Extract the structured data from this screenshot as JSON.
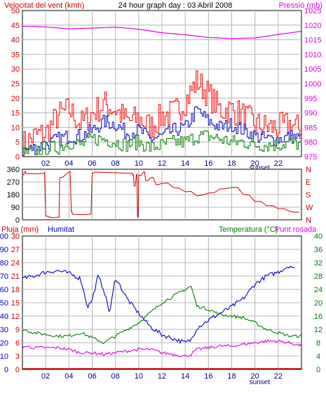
{
  "chart_data": [
    {
      "type": "line",
      "title": "24 hour graph day : 03 Abril 2008",
      "left_axis_label": "Velocitat del vent (kmh)",
      "right_axis_label": "Pressió (mb)",
      "left_ylim": [
        0,
        50
      ],
      "left_ticks": [
        "0",
        "5",
        "10",
        "15",
        "20",
        "25",
        "30",
        "35",
        "40",
        "45",
        "50"
      ],
      "right_ylim": [
        975,
        1025
      ],
      "right_ticks": [
        "975",
        "980",
        "985",
        "990",
        "995",
        "1000",
        "1005",
        "1010",
        "1015",
        "1020",
        "1025"
      ],
      "x_range": [
        0,
        24
      ],
      "x_ticks": [
        "02",
        "04",
        "06",
        "08",
        "10",
        "12",
        "14",
        "16",
        "18",
        "20",
        "22"
      ],
      "x_marker": {
        "label": "sunset",
        "x": 20.4
      },
      "grid": true,
      "colors": {
        "gust": "#ff0000",
        "avg": "#0000c8",
        "dir": "#008000",
        "pressure": "#e000e0"
      },
      "series": [
        {
          "key": "pressure",
          "axis": "right",
          "x": [
            0,
            2,
            4,
            6,
            8,
            10,
            12,
            14,
            16,
            18,
            20,
            22,
            24
          ],
          "values": [
            1019.6,
            1019.4,
            1018.7,
            1019.0,
            1019.3,
            1018.6,
            1017.4,
            1016.7,
            1015.8,
            1015.4,
            1015.6,
            1016.8,
            1017.9
          ]
        },
        {
          "key": "gust",
          "axis": "left",
          "x": [
            0,
            1,
            2,
            3,
            4,
            5,
            6,
            7,
            8,
            9,
            10,
            11,
            12,
            13,
            14,
            15,
            16,
            17,
            18,
            19,
            20,
            21,
            22,
            23,
            24
          ],
          "values": [
            4,
            7,
            8,
            14,
            16,
            11,
            15,
            18,
            16,
            12,
            13,
            10,
            14,
            15,
            19,
            26,
            21,
            16,
            16,
            14,
            11,
            10,
            10,
            11,
            9
          ]
        },
        {
          "key": "avg",
          "axis": "left",
          "x": [
            0,
            1,
            2,
            3,
            4,
            5,
            6,
            7,
            8,
            9,
            10,
            11,
            12,
            13,
            14,
            15,
            16,
            17,
            18,
            19,
            20,
            21,
            22,
            23,
            24
          ],
          "values": [
            2,
            3,
            4,
            6,
            7,
            7,
            9,
            12,
            11,
            8,
            9,
            6,
            7,
            9,
            10,
            16,
            12,
            10,
            11,
            9,
            7,
            6,
            6,
            7,
            6
          ]
        },
        {
          "key": "dir",
          "axis": "left",
          "x": [
            0,
            1,
            2,
            3,
            4,
            5,
            6,
            7,
            8,
            9,
            10,
            11,
            12,
            13,
            14,
            15,
            16,
            17,
            18,
            19,
            20,
            21,
            22,
            23,
            24
          ],
          "values": [
            1,
            2,
            3,
            3,
            5,
            4,
            6,
            6,
            5,
            4,
            5,
            3,
            4,
            5,
            5,
            7,
            7,
            6,
            5,
            5,
            4,
            4,
            4,
            5,
            4
          ]
        }
      ]
    },
    {
      "type": "line",
      "left_ylim": [
        0,
        360
      ],
      "left_ticks": [
        "0",
        "90",
        "180",
        "270",
        "360"
      ],
      "right_ticks": [
        "N",
        "E",
        "S",
        "W",
        "N"
      ],
      "x_range": [
        0,
        24
      ],
      "color": "#cc0000",
      "series": [
        {
          "key": "wind_direction",
          "x": [
            0,
            0.2,
            0.3,
            1.8,
            2.0,
            2.3,
            3.1,
            3.2,
            3.8,
            4.0,
            4.2,
            4.3,
            5.8,
            6.0,
            6.2,
            9.3,
            9.5,
            9.6,
            9.8,
            9.9,
            10.0,
            10.4,
            10.6,
            11.0,
            11.5,
            12.0,
            13.0,
            14.0,
            15.0,
            16.0,
            17.0,
            18.0,
            19.0,
            20.0,
            21.0,
            22.0,
            23.0,
            23.8
          ],
          "values": [
            320,
            340,
            330,
            330,
            30,
            20,
            20,
            300,
            330,
            340,
            60,
            40,
            40,
            330,
            340,
            330,
            320,
            240,
            320,
            20,
            320,
            340,
            280,
            300,
            250,
            260,
            230,
            200,
            170,
            190,
            220,
            230,
            180,
            130,
            100,
            80,
            60,
            55
          ]
        }
      ]
    },
    {
      "type": "line",
      "labels": [
        "Pluja (mm)",
        "Humitat",
        "Temperatura (°C)",
        "Punt rosada"
      ],
      "left_ticks_humidity": [
        "0",
        "10",
        "20",
        "30",
        "40",
        "50",
        "60",
        "70",
        "80",
        "90",
        "100"
      ],
      "left_ticks_rain": [
        "0",
        "3",
        "6",
        "9",
        "12",
        "15",
        "18",
        "21",
        "24",
        "27",
        "30"
      ],
      "right_ticks": [
        "0",
        "4",
        "8",
        "12",
        "16",
        "20",
        "24",
        "28",
        "32",
        "36",
        "40"
      ],
      "humidity_ylim": [
        0,
        100
      ],
      "temperature_ylim": [
        0,
        40
      ],
      "x_range": [
        0,
        24
      ],
      "x_ticks": [
        "02",
        "04",
        "06",
        "08",
        "10",
        "12",
        "14",
        "16",
        "18",
        "20",
        "22"
      ],
      "x_marker": {
        "label": "sunset",
        "x": 20.4
      },
      "colors": {
        "rain": "#cc0000",
        "humidity": "#0000c8",
        "temperature": "#008000",
        "dewpoint": "#e000e0"
      },
      "series": [
        {
          "key": "humidity",
          "axis": "humidity",
          "x": [
            0,
            1,
            2,
            3,
            4,
            5,
            5.6,
            6,
            6.5,
            7,
            7.5,
            8,
            9,
            10,
            11,
            12,
            13,
            14,
            14.5,
            15,
            16,
            17,
            18,
            19,
            20,
            21,
            22,
            23,
            23.5
          ],
          "values": [
            68,
            70,
            73,
            74,
            72,
            68,
            47,
            52,
            70,
            60,
            42,
            69,
            53,
            42,
            32,
            26,
            23,
            20,
            22,
            31,
            37,
            42,
            47,
            53,
            64,
            70,
            73,
            78,
            74
          ]
        },
        {
          "key": "temperature",
          "axis": "temperature",
          "x": [
            0,
            1,
            2,
            3,
            4,
            5,
            6,
            7,
            8,
            9,
            10,
            11,
            12,
            13,
            14,
            14.5,
            15,
            16,
            17,
            18,
            19,
            20,
            21,
            22,
            23,
            24
          ],
          "values": [
            12,
            11,
            10.5,
            10,
            10,
            11,
            9.5,
            8,
            10,
            12,
            14,
            17,
            20,
            22,
            24,
            25,
            19,
            18,
            16.5,
            16,
            15.5,
            14,
            12,
            11,
            10,
            10
          ]
        },
        {
          "key": "dewpoint",
          "axis": "temperature",
          "x": [
            0,
            1,
            2,
            3,
            4,
            5,
            6,
            7,
            8,
            9,
            10,
            11,
            12,
            13,
            14,
            14.5,
            15,
            16,
            17,
            18,
            19,
            20,
            21,
            22,
            23,
            24
          ],
          "values": [
            7,
            6.5,
            6.5,
            6.5,
            6,
            5,
            5,
            4.5,
            5,
            5.5,
            6,
            6,
            5,
            4.5,
            4,
            4.5,
            6,
            6.5,
            7,
            7,
            7.5,
            8,
            8.5,
            8.5,
            8,
            7
          ]
        },
        {
          "key": "rain",
          "axis": "rain",
          "x": [
            0,
            24
          ],
          "values": [
            0,
            0
          ]
        }
      ]
    }
  ]
}
